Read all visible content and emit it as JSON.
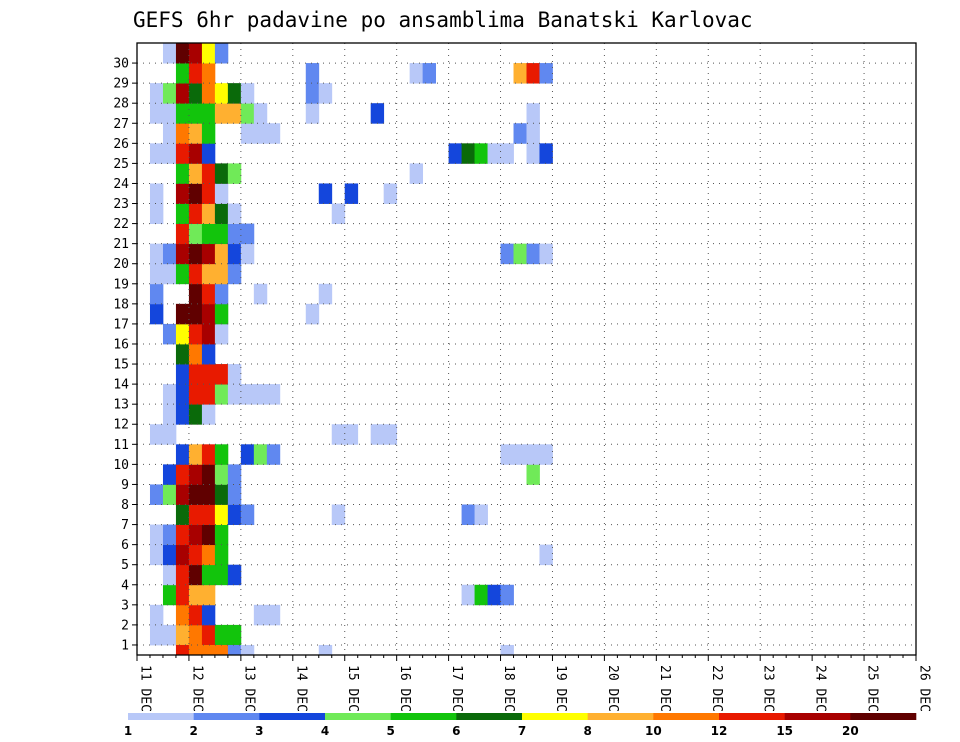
{
  "chart_data": {
    "type": "heatmap",
    "title": "GEFS 6hr padavine po ansamblima Banatski Karlovac",
    "xlabel": "",
    "ylabel": "",
    "x_ticks": [
      "11 DEC",
      "12 DEC",
      "13 DEC",
      "14 DEC",
      "15 DEC",
      "16 DEC",
      "17 DEC",
      "18 DEC",
      "19 DEC",
      "20 DEC",
      "21 DEC",
      "22 DEC",
      "23 DEC",
      "24 DEC",
      "25 DEC",
      "26 DEC"
    ],
    "y_ticks": [
      "1",
      "2",
      "3",
      "4",
      "5",
      "6",
      "7",
      "8",
      "9",
      "10",
      "11",
      "12",
      "13",
      "14",
      "15",
      "16",
      "17",
      "18",
      "19",
      "20",
      "21",
      "22",
      "23",
      "24",
      "25",
      "26",
      "27",
      "28",
      "29",
      "30"
    ],
    "grid": true,
    "colorbar": {
      "boundaries": [
        1,
        2,
        3,
        4,
        5,
        6,
        7,
        8,
        10,
        12,
        15,
        20
      ],
      "labels": [
        "1",
        "2",
        "3",
        "4",
        "5",
        "6",
        "7",
        "8",
        "10",
        "12",
        "15",
        "20"
      ],
      "colors": [
        "#b8c8f8",
        "#6088f0",
        "#1446dc",
        "#70ea58",
        "#12c40c",
        "#0a6a0a",
        "#ffff00",
        "#ffb030",
        "#ff7800",
        "#e81a00",
        "#a80000",
        "#600000"
      ],
      "legend_position": "bottom"
    },
    "cells": [
      [
        1,
        1,
        1
      ],
      [
        1,
        2,
        1
      ],
      [
        1,
        3,
        8
      ],
      [
        1,
        4,
        9
      ],
      [
        1,
        5,
        10
      ],
      [
        1,
        6,
        5
      ],
      [
        1,
        7,
        5
      ],
      [
        2,
        1,
        1
      ],
      [
        2,
        3,
        9
      ],
      [
        2,
        4,
        10
      ],
      [
        2,
        5,
        3
      ],
      [
        2,
        9,
        1
      ],
      [
        2,
        10,
        1
      ],
      [
        3,
        2,
        5
      ],
      [
        3,
        3,
        10
      ],
      [
        3,
        4,
        8
      ],
      [
        3,
        5,
        8
      ],
      [
        3,
        25,
        1
      ],
      [
        3,
        26,
        5
      ],
      [
        3,
        27,
        3
      ],
      [
        3,
        28,
        2
      ],
      [
        4,
        2,
        1
      ],
      [
        4,
        3,
        10
      ],
      [
        4,
        4,
        12
      ],
      [
        4,
        5,
        5
      ],
      [
        4,
        6,
        5
      ],
      [
        4,
        7,
        3
      ],
      [
        5,
        1,
        1
      ],
      [
        5,
        2,
        3
      ],
      [
        5,
        3,
        11
      ],
      [
        5,
        4,
        10
      ],
      [
        5,
        5,
        9
      ],
      [
        5,
        6,
        5
      ],
      [
        5,
        31,
        1
      ],
      [
        6,
        1,
        1
      ],
      [
        6,
        2,
        2
      ],
      [
        6,
        3,
        10
      ],
      [
        6,
        4,
        11
      ],
      [
        6,
        5,
        12
      ],
      [
        6,
        6,
        5
      ],
      [
        7,
        3,
        6
      ],
      [
        7,
        4,
        10
      ],
      [
        7,
        5,
        10
      ],
      [
        7,
        6,
        7
      ],
      [
        7,
        7,
        3
      ],
      [
        7,
        8,
        2
      ],
      [
        7,
        15,
        1
      ],
      [
        7,
        25,
        2
      ],
      [
        7,
        26,
        1
      ],
      [
        8,
        1,
        2
      ],
      [
        8,
        2,
        4
      ],
      [
        8,
        3,
        11
      ],
      [
        8,
        4,
        12
      ],
      [
        8,
        5,
        12
      ],
      [
        8,
        6,
        6
      ],
      [
        8,
        7,
        2
      ],
      [
        9,
        2,
        3
      ],
      [
        9,
        3,
        10
      ],
      [
        9,
        4,
        11
      ],
      [
        9,
        5,
        12
      ],
      [
        9,
        6,
        4
      ],
      [
        9,
        7,
        2
      ],
      [
        9,
        30,
        4
      ],
      [
        10,
        3,
        3
      ],
      [
        10,
        4,
        8
      ],
      [
        10,
        5,
        10
      ],
      [
        10,
        6,
        5
      ],
      [
        10,
        8,
        3
      ],
      [
        10,
        9,
        4
      ],
      [
        10,
        10,
        2
      ],
      [
        10,
        28,
        1
      ],
      [
        10,
        29,
        1
      ],
      [
        10,
        30,
        1
      ],
      [
        10,
        31,
        1
      ],
      [
        11,
        1,
        1
      ],
      [
        11,
        2,
        1
      ],
      [
        11,
        15,
        1
      ],
      [
        11,
        16,
        1
      ],
      [
        11,
        18,
        1
      ],
      [
        11,
        19,
        1
      ],
      [
        12,
        2,
        1
      ],
      [
        12,
        3,
        3
      ],
      [
        12,
        4,
        6
      ],
      [
        12,
        5,
        1
      ],
      [
        13,
        2,
        1
      ],
      [
        13,
        3,
        3
      ],
      [
        13,
        4,
        10
      ],
      [
        13,
        5,
        10
      ],
      [
        13,
        6,
        4
      ],
      [
        13,
        7,
        1
      ],
      [
        13,
        8,
        1
      ],
      [
        13,
        9,
        1
      ],
      [
        13,
        10,
        1
      ],
      [
        14,
        3,
        3
      ],
      [
        14,
        4,
        10
      ],
      [
        14,
        5,
        10
      ],
      [
        14,
        6,
        10
      ],
      [
        14,
        7,
        1
      ],
      [
        15,
        3,
        6
      ],
      [
        15,
        4,
        9
      ],
      [
        15,
        5,
        3
      ],
      [
        16,
        2,
        2
      ],
      [
        16,
        3,
        7
      ],
      [
        16,
        4,
        10
      ],
      [
        16,
        5,
        11
      ],
      [
        16,
        6,
        1
      ],
      [
        17,
        1,
        3
      ],
      [
        17,
        3,
        12
      ],
      [
        17,
        4,
        12
      ],
      [
        17,
        5,
        11
      ],
      [
        17,
        6,
        5
      ],
      [
        17,
        13,
        1
      ],
      [
        18,
        1,
        2
      ],
      [
        18,
        4,
        12
      ],
      [
        18,
        5,
        10
      ],
      [
        18,
        6,
        2
      ],
      [
        18,
        9,
        1
      ],
      [
        18,
        14,
        1
      ],
      [
        19,
        1,
        1
      ],
      [
        19,
        2,
        1
      ],
      [
        19,
        3,
        5
      ],
      [
        19,
        4,
        10
      ],
      [
        19,
        5,
        8
      ],
      [
        19,
        6,
        8
      ],
      [
        19,
        7,
        2
      ],
      [
        20,
        1,
        1
      ],
      [
        20,
        2,
        2
      ],
      [
        20,
        3,
        11
      ],
      [
        20,
        4,
        12
      ],
      [
        20,
        5,
        11
      ],
      [
        20,
        6,
        8
      ],
      [
        20,
        7,
        3
      ],
      [
        20,
        8,
        1
      ],
      [
        20,
        28,
        2
      ],
      [
        20,
        29,
        4
      ],
      [
        20,
        30,
        2
      ],
      [
        20,
        31,
        1
      ],
      [
        21,
        3,
        10
      ],
      [
        21,
        4,
        4
      ],
      [
        21,
        5,
        5
      ],
      [
        21,
        6,
        5
      ],
      [
        21,
        7,
        2
      ],
      [
        21,
        8,
        2
      ],
      [
        22,
        1,
        1
      ],
      [
        22,
        3,
        5
      ],
      [
        22,
        4,
        10
      ],
      [
        22,
        5,
        8
      ],
      [
        22,
        6,
        6
      ],
      [
        22,
        7,
        1
      ],
      [
        22,
        15,
        1
      ],
      [
        23,
        1,
        1
      ],
      [
        23,
        3,
        11
      ],
      [
        23,
        4,
        12
      ],
      [
        23,
        5,
        10
      ],
      [
        23,
        6,
        1
      ],
      [
        23,
        14,
        3
      ],
      [
        23,
        16,
        3
      ],
      [
        23,
        19,
        1
      ],
      [
        24,
        3,
        5
      ],
      [
        24,
        4,
        8
      ],
      [
        24,
        5,
        10
      ],
      [
        24,
        6,
        6
      ],
      [
        24,
        7,
        4
      ],
      [
        24,
        21,
        1
      ],
      [
        25,
        1,
        1
      ],
      [
        25,
        2,
        1
      ],
      [
        25,
        3,
        10
      ],
      [
        25,
        4,
        11
      ],
      [
        25,
        5,
        3
      ],
      [
        25,
        24,
        3
      ],
      [
        25,
        25,
        6
      ],
      [
        25,
        26,
        5
      ],
      [
        25,
        27,
        1
      ],
      [
        25,
        28,
        1
      ],
      [
        25,
        30,
        1
      ],
      [
        25,
        31,
        3
      ],
      [
        26,
        2,
        1
      ],
      [
        26,
        3,
        9
      ],
      [
        26,
        4,
        8
      ],
      [
        26,
        5,
        5
      ],
      [
        26,
        8,
        1
      ],
      [
        26,
        9,
        1
      ],
      [
        26,
        10,
        1
      ],
      [
        26,
        29,
        2
      ],
      [
        26,
        30,
        1
      ],
      [
        27,
        1,
        1
      ],
      [
        27,
        2,
        1
      ],
      [
        27,
        3,
        5
      ],
      [
        27,
        4,
        5
      ],
      [
        27,
        5,
        5
      ],
      [
        27,
        6,
        8
      ],
      [
        27,
        7,
        8
      ],
      [
        27,
        8,
        4
      ],
      [
        27,
        9,
        1
      ],
      [
        27,
        13,
        1
      ],
      [
        27,
        18,
        3
      ],
      [
        27,
        30,
        1
      ],
      [
        28,
        1,
        1
      ],
      [
        28,
        2,
        4
      ],
      [
        28,
        3,
        11
      ],
      [
        28,
        4,
        6
      ],
      [
        28,
        5,
        9
      ],
      [
        28,
        6,
        7
      ],
      [
        28,
        7,
        6
      ],
      [
        28,
        8,
        1
      ],
      [
        28,
        13,
        2
      ],
      [
        28,
        14,
        1
      ],
      [
        29,
        3,
        5
      ],
      [
        29,
        4,
        10
      ],
      [
        29,
        5,
        9
      ],
      [
        29,
        13,
        2
      ],
      [
        29,
        21,
        1
      ],
      [
        29,
        22,
        2
      ],
      [
        29,
        29,
        8
      ],
      [
        29,
        30,
        10
      ],
      [
        29,
        31,
        2
      ],
      [
        30,
        2,
        1
      ],
      [
        30,
        3,
        12
      ],
      [
        30,
        4,
        11
      ],
      [
        30,
        5,
        7
      ],
      [
        30,
        6,
        2
      ],
      [
        0,
        3,
        10
      ],
      [
        0,
        4,
        9
      ],
      [
        0,
        5,
        9
      ],
      [
        0,
        6,
        9
      ],
      [
        0,
        7,
        2
      ],
      [
        0,
        8,
        1
      ],
      [
        0,
        14,
        1
      ],
      [
        0,
        28,
        1
      ]
    ]
  }
}
